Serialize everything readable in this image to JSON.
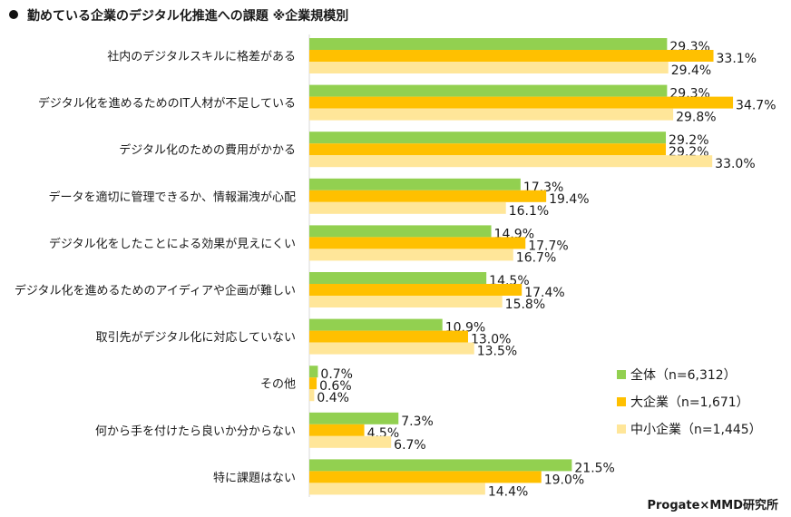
{
  "title": "勤めている企業のデジタル化推進への課題 ※企業規模別",
  "credit": "Progate×MMD研究所",
  "chart_data": {
    "type": "bar",
    "orientation": "horizontal",
    "title": "勤めている企業のデジタル化推進への課題 ※企業規模別",
    "xlabel": "",
    "ylabel": "",
    "xlim": [
      0,
      40
    ],
    "grid": false,
    "legend_position": "bottom-right",
    "categories": [
      "社内のデジタルスキルに格差がある",
      "デジタル化を進めるためのIT人材が不足している",
      "デジタル化のための費用がかかる",
      "データを適切に管理できるか、情報漏洩が心配",
      "デジタル化をしたことによる効果が見えにくい",
      "デジタル化を進めるためのアイディアや企画が難しい",
      "取引先がデジタル化に対応していない",
      "その他",
      "何から手を付けたら良いか分からない",
      "特に課題はない"
    ],
    "series": [
      {
        "name": "全体（n=6,312）",
        "color": "#92d050",
        "values": [
          29.3,
          29.3,
          29.2,
          17.3,
          14.9,
          14.5,
          10.9,
          0.7,
          7.3,
          21.5
        ]
      },
      {
        "name": "大企業（n=1,671）",
        "color": "#ffc000",
        "values": [
          33.1,
          34.7,
          29.2,
          19.4,
          17.7,
          17.4,
          13.0,
          0.6,
          4.5,
          19.0
        ]
      },
      {
        "name": "中小企業（n=1,445）",
        "color": "#ffe699",
        "values": [
          29.4,
          29.8,
          33.0,
          16.1,
          16.7,
          15.8,
          13.5,
          0.4,
          6.7,
          14.4
        ]
      }
    ],
    "value_suffix": "%"
  }
}
